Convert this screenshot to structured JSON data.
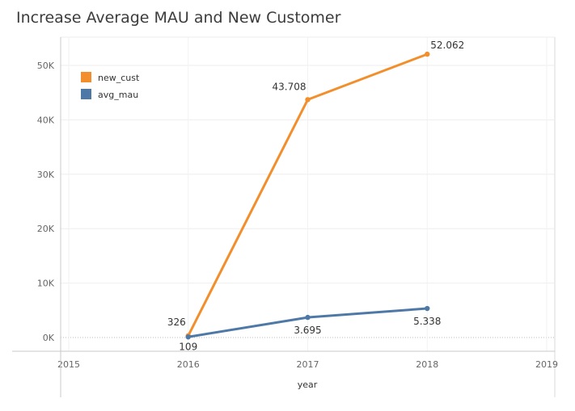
{
  "title": "Increase Average MAU and New Customer",
  "chart_data": {
    "type": "line",
    "title": "Increase Average MAU and New Customer",
    "xlabel": "year",
    "ylabel": "",
    "x": [
      2016,
      2017,
      2018
    ],
    "x_ticks": [
      "2015",
      "2016",
      "2017",
      "2018",
      "2019"
    ],
    "xlim": [
      2015,
      2019
    ],
    "y_ticks": [
      "0K",
      "10K",
      "20K",
      "30K",
      "40K",
      "50K"
    ],
    "ylim": [
      0,
      53500
    ],
    "grid": true,
    "legend_position": "top-left",
    "series": [
      {
        "name": "new_cust",
        "color": "#f28e2b",
        "values": [
          326,
          43708,
          52062
        ],
        "labels": [
          "326",
          "43.708",
          "52.062"
        ]
      },
      {
        "name": "avg_mau",
        "color": "#4e79a7",
        "values": [
          109,
          3695,
          5338
        ],
        "labels": [
          "109",
          "3.695",
          "5.338"
        ]
      }
    ]
  }
}
